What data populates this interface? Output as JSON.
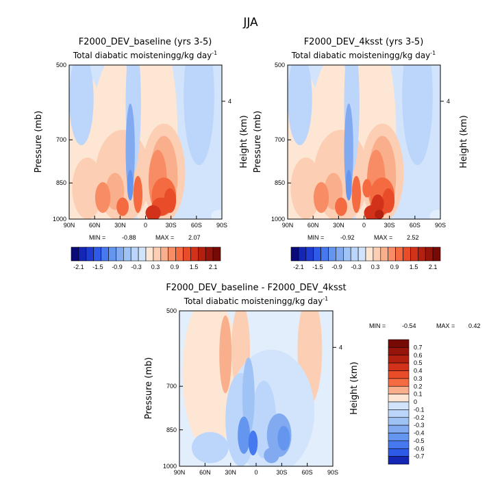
{
  "figure_title": "JJA",
  "colors": {
    "diverging_scale_21": [
      "#0a0a78",
      "#1426b4",
      "#1e3cd2",
      "#2d5ae6",
      "#4678f0",
      "#6496f0",
      "#82aaf0",
      "#a0c3f5",
      "#bcd5fa",
      "#d2e4fc",
      "#e2eefc",
      "#fde6d4",
      "#fccfb4",
      "#faaf8c",
      "#f88c64",
      "#f46a41",
      "#e84c28",
      "#d2321a",
      "#b4200f",
      "#961409",
      "#780a05"
    ],
    "scale_a_colors": [
      "#0a0a78",
      "#1426b4",
      "#1e3cd2",
      "#2d5ae6",
      "#4678f0",
      "#6496f0",
      "#82aaf0",
      "#a0c3f5",
      "#bcd5fa",
      "#d2e4fc",
      "#fde6d4",
      "#fccfb4",
      "#faaf8c",
      "#f88c64",
      "#f46a41",
      "#e84c28",
      "#d2321a",
      "#b4200f",
      "#961409",
      "#780a05"
    ],
    "scale_b_colors": [
      "#0a0a78",
      "#1426b4",
      "#1e3cd2",
      "#2d5ae6",
      "#4678f0",
      "#6496f0",
      "#82aaf0",
      "#a0c3f5",
      "#bcd5fa",
      "#d2e4fc",
      "#fde6d4",
      "#fccfb4",
      "#faaf8c",
      "#f88c64",
      "#f46a41",
      "#e84c28",
      "#d2321a",
      "#b4200f",
      "#961409",
      "#780a05"
    ]
  },
  "chart_data": [
    {
      "type": "heatmap",
      "id": "baseline",
      "title": "F2000_DEV_baseline (yrs 3-5)",
      "subtitle_main": "Total diabatic moistening",
      "subtitle_units": "g/kg day",
      "subtitle_exp": "-1",
      "xlabel": "",
      "ylabel": "Pressure (mb)",
      "ylabel_right": "Height (km)",
      "x_ticks": [
        "90N",
        "60N",
        "30N",
        "0",
        "30S",
        "60S",
        "90S"
      ],
      "y_ticks": [
        "500",
        "700",
        "850",
        "1000"
      ],
      "y_right_ticks": [
        "4"
      ],
      "ylim": [
        1000,
        500
      ],
      "min_label": "MIN =",
      "min_value": "-0.88",
      "max_label": "MAX =",
      "max_value": "2.07",
      "colorbar_labels": [
        "-2.1",
        "-1.5",
        "-0.9",
        "-0.3",
        "0.3",
        "0.9",
        "1.5",
        "2.1"
      ],
      "colorbar_range": [
        -2.1,
        2.1
      ]
    },
    {
      "type": "heatmap",
      "id": "4ksst",
      "title": "F2000_DEV_4ksst (yrs 3-5)",
      "subtitle_main": "Total diabatic moistening",
      "subtitle_units": "g/kg day",
      "subtitle_exp": "-1",
      "xlabel": "",
      "ylabel": "Pressure (mb)",
      "ylabel_right": "Height (km)",
      "x_ticks": [
        "90N",
        "60N",
        "30N",
        "0",
        "30S",
        "60S",
        "90S"
      ],
      "y_ticks": [
        "500",
        "700",
        "850",
        "1000"
      ],
      "y_right_ticks": [
        "4"
      ],
      "ylim": [
        1000,
        500
      ],
      "min_label": "MIN =",
      "min_value": "-0.92",
      "max_label": "MAX =",
      "max_value": "2.52",
      "colorbar_labels": [
        "-2.1",
        "-1.5",
        "-0.9",
        "-0.3",
        "0.3",
        "0.9",
        "1.5",
        "2.1"
      ],
      "colorbar_range": [
        -2.1,
        2.1
      ]
    },
    {
      "type": "heatmap",
      "id": "difference",
      "title": "F2000_DEV_baseline - F2000_DEV_4ksst",
      "subtitle_main": "Total diabatic moistening",
      "subtitle_units": "g/kg day",
      "subtitle_exp": "-1",
      "xlabel": "",
      "ylabel": "Pressure (mb)",
      "ylabel_right": "Height (km)",
      "x_ticks": [
        "90N",
        "60N",
        "30N",
        "0",
        "30S",
        "60S",
        "90S"
      ],
      "y_ticks": [
        "500",
        "700",
        "850",
        "1000"
      ],
      "y_right_ticks": [
        "4"
      ],
      "ylim": [
        1000,
        500
      ],
      "min_label": "MIN =",
      "min_value": "-0.54",
      "max_label": "MAX =",
      "max_value": "0.42",
      "colorbar_labels": [
        "0.7",
        "0.6",
        "0.5",
        "0.4",
        "0.3",
        "0.2",
        "0.1",
        "0",
        "-0.1",
        "-0.2",
        "-0.3",
        "-0.4",
        "-0.5",
        "-0.6",
        "-0.7"
      ],
      "colorbar_range": [
        -0.7,
        0.7
      ]
    }
  ]
}
